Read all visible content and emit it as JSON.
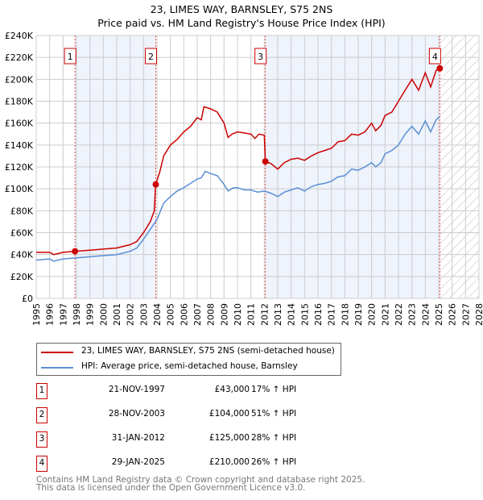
{
  "chart_data": {
    "type": "line",
    "title": "23, LIMES WAY, BARNSLEY, S75 2NS",
    "subtitle": "Price paid vs. HM Land Registry's House Price Index (HPI)",
    "xlim": [
      1995,
      2028
    ],
    "ylim": [
      0,
      240000
    ],
    "y_ticks": [
      {
        "v": 0,
        "l": "£0"
      },
      {
        "v": 20000,
        "l": "£20K"
      },
      {
        "v": 40000,
        "l": "£40K"
      },
      {
        "v": 60000,
        "l": "£60K"
      },
      {
        "v": 80000,
        "l": "£80K"
      },
      {
        "v": 100000,
        "l": "£100K"
      },
      {
        "v": 120000,
        "l": "£120K"
      },
      {
        "v": 140000,
        "l": "£140K"
      },
      {
        "v": 160000,
        "l": "£160K"
      },
      {
        "v": 180000,
        "l": "£180K"
      },
      {
        "v": 200000,
        "l": "£200K"
      },
      {
        "v": 220000,
        "l": "£220K"
      },
      {
        "v": 240000,
        "l": "£240K"
      }
    ],
    "x_ticks": [
      "1995",
      "1996",
      "1997",
      "1998",
      "1999",
      "2000",
      "2001",
      "2002",
      "2003",
      "2004",
      "2005",
      "2006",
      "2007",
      "2008",
      "2009",
      "2010",
      "2011",
      "2012",
      "2013",
      "2014",
      "2015",
      "2016",
      "2017",
      "2018",
      "2019",
      "2020",
      "2021",
      "2022",
      "2023",
      "2024",
      "2025",
      "2026",
      "2027",
      "2028"
    ],
    "grid": true,
    "series": [
      {
        "name": "23, LIMES WAY, BARNSLEY, S75 2NS (semi-detached house)",
        "color": "#cc0000",
        "x": [
          1995,
          1996,
          1996.3,
          1997,
          1997.9,
          1999,
          2000,
          2001,
          2002,
          2002.5,
          2003,
          2003.5,
          2003.8,
          2003.9,
          2004.2,
          2004.5,
          2005,
          2005.5,
          2006,
          2006.5,
          2007,
          2007.3,
          2007.5,
          2008,
          2008.5,
          2009,
          2009.3,
          2009.6,
          2010,
          2010.5,
          2011,
          2011.3,
          2011.6,
          2012.0,
          2012.08,
          2012.5,
          2013,
          2013.5,
          2014,
          2014.5,
          2015,
          2015.5,
          2016,
          2016.5,
          2017,
          2017.5,
          2018,
          2018.5,
          2019,
          2019.5,
          2020,
          2020.3,
          2020.7,
          2021,
          2021.5,
          2022,
          2022.5,
          2023,
          2023.5,
          2024,
          2024.4,
          2024.8,
          2025.08
        ],
        "y": [
          42000,
          42000,
          40000,
          42000,
          43000,
          44000,
          45000,
          46000,
          49000,
          52000,
          60000,
          70000,
          80000,
          104000,
          115000,
          130000,
          140000,
          145000,
          152000,
          157000,
          165000,
          163000,
          175000,
          173000,
          170000,
          160000,
          147000,
          150000,
          152000,
          151000,
          150000,
          146000,
          150000,
          149000,
          125000,
          123000,
          118000,
          124000,
          127000,
          128000,
          126000,
          130000,
          133000,
          135000,
          137000,
          143000,
          144000,
          150000,
          149000,
          152000,
          160000,
          153000,
          158000,
          167000,
          170000,
          180000,
          190000,
          200000,
          190000,
          206000,
          193000,
          208000,
          210000
        ]
      },
      {
        "name": "HPI: Average price, semi-detached house, Barnsley",
        "color": "#5b8fd4",
        "x": [
          1995,
          1996,
          1996.3,
          1997,
          1998,
          1999,
          2000,
          2001,
          2002,
          2002.5,
          2003,
          2003.5,
          2004,
          2004.5,
          2005,
          2005.5,
          2006,
          2006.5,
          2007,
          2007.3,
          2007.6,
          2008,
          2008.5,
          2009,
          2009.3,
          2009.7,
          2010,
          2010.5,
          2011,
          2011.5,
          2012,
          2012.5,
          2013,
          2013.5,
          2014,
          2014.5,
          2015,
          2015.5,
          2016,
          2016.5,
          2017,
          2017.5,
          2018,
          2018.5,
          2019,
          2019.5,
          2020,
          2020.3,
          2020.7,
          2021,
          2021.5,
          2022,
          2022.5,
          2023,
          2023.5,
          2024,
          2024.4,
          2024.8,
          2025.08
        ],
        "y": [
          35000,
          36000,
          34000,
          36000,
          37000,
          38000,
          39000,
          40000,
          43000,
          46000,
          54000,
          63000,
          72000,
          87000,
          93000,
          98000,
          101000,
          105000,
          109000,
          110000,
          116000,
          114000,
          112000,
          104000,
          98000,
          101000,
          101000,
          99000,
          99000,
          97000,
          98000,
          96000,
          93000,
          97000,
          99000,
          101000,
          98000,
          102000,
          104000,
          105000,
          107000,
          111000,
          112000,
          118000,
          117000,
          120000,
          124000,
          120000,
          124000,
          132000,
          135000,
          140000,
          150000,
          157000,
          150000,
          162000,
          152000,
          163000,
          166000
        ]
      }
    ],
    "sales": [
      {
        "label": "1",
        "x": 1997.89,
        "y": 43000,
        "date": "21-NOV-1997",
        "price": "£43,000",
        "hpi": "17% ↑ HPI"
      },
      {
        "label": "2",
        "x": 2003.91,
        "y": 104000,
        "date": "28-NOV-2003",
        "price": "£104,000",
        "hpi": "51% ↑ HPI"
      },
      {
        "label": "3",
        "x": 2012.08,
        "y": 125000,
        "date": "31-JAN-2012",
        "price": "£125,000",
        "hpi": "28% ↑ HPI"
      },
      {
        "label": "4",
        "x": 2025.08,
        "y": 210000,
        "date": "29-JAN-2025",
        "price": "£210,000",
        "hpi": "26% ↑ HPI"
      }
    ],
    "shade_color": "#eef3fc",
    "forecast_from": 2025.08
  },
  "footer": {
    "line1": "Contains HM Land Registry data © Crown copyright and database right 2025.",
    "line2": "This data is licensed under the Open Government Licence v3.0."
  }
}
